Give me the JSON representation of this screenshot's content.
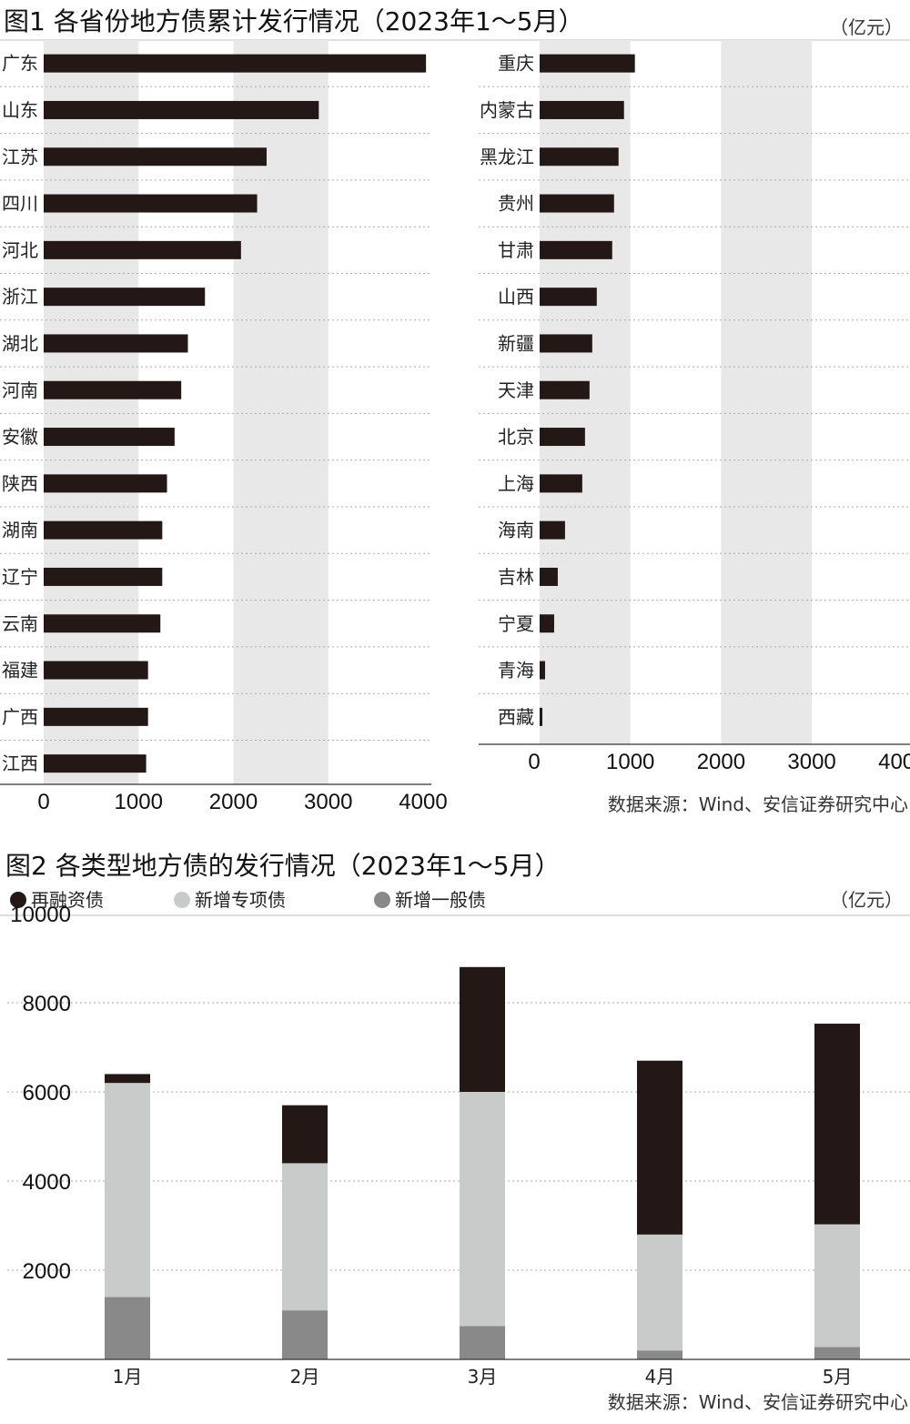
{
  "colors": {
    "bar": "#231815",
    "refinance": "#231815",
    "special": "#c9caca",
    "general": "#898989",
    "band": "#e8e8e8",
    "grid": "#aaaaaa"
  },
  "chart_data": [
    {
      "type": "bar",
      "orientation": "horizontal",
      "title": "图1 各省份地方债累计发行情况（2023年1～5月）",
      "unit": "（亿元）",
      "source": "数据来源：Wind、安信证券研究中心",
      "xlim": [
        0,
        4000
      ],
      "xticks": [
        "0",
        "1000",
        "2000",
        "3000",
        "4000"
      ],
      "panels": [
        {
          "categories": [
            "广东",
            "山东",
            "江苏",
            "四川",
            "河北",
            "浙江",
            "湖北",
            "河南",
            "安徽",
            "陕西",
            "湖南",
            "辽宁",
            "云南",
            "福建",
            "广西",
            "江西"
          ],
          "values": [
            4030,
            2900,
            2350,
            2250,
            2080,
            1700,
            1520,
            1450,
            1380,
            1300,
            1250,
            1250,
            1230,
            1100,
            1100,
            1080
          ]
        },
        {
          "categories": [
            "重庆",
            "内蒙古",
            "黑龙江",
            "贵州",
            "甘肃",
            "山西",
            "新疆",
            "天津",
            "北京",
            "上海",
            "海南",
            "吉林",
            "宁夏",
            "青海",
            "西藏"
          ],
          "values": [
            1050,
            930,
            870,
            820,
            800,
            630,
            580,
            550,
            500,
            470,
            280,
            200,
            160,
            60,
            30
          ]
        }
      ]
    },
    {
      "type": "bar",
      "stacked": true,
      "title": "图2 各类型地方债的发行情况（2023年1～5月）",
      "unit": "（亿元）",
      "source": "数据来源：Wind、安信证券研究中心",
      "categories": [
        "1月",
        "2月",
        "3月",
        "4月",
        "5月"
      ],
      "ylim": [
        0,
        10000
      ],
      "yticks": [
        "2000",
        "4000",
        "6000",
        "8000",
        "10000"
      ],
      "series": [
        {
          "name": "新增一般债",
          "color_key": "general",
          "values": [
            1400,
            1100,
            750,
            200,
            280
          ]
        },
        {
          "name": "新增专项债",
          "color_key": "special",
          "values": [
            4800,
            3300,
            5250,
            2600,
            2750
          ]
        },
        {
          "name": "再融资债",
          "color_key": "refinance",
          "values": [
            200,
            1300,
            2800,
            3900,
            4500
          ]
        }
      ],
      "legend_order": [
        "再融资债",
        "新增专项债",
        "新增一般债"
      ]
    }
  ]
}
